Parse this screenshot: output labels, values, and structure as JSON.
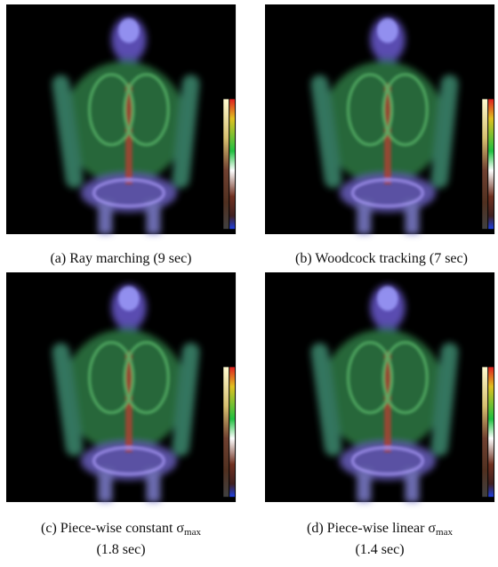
{
  "figures": [
    {
      "caption": "(a) Ray marching (9 sec)"
    },
    {
      "caption": "(b) Woodcock tracking (7 sec)"
    },
    {
      "caption": "(c) Piece-wise constant σ",
      "caption_sub": "max",
      "caption_line2": "(1.8 sec)"
    },
    {
      "caption": "(d) Piece-wise linear σ",
      "caption_sub": "max",
      "caption_line2": "(1.4 sec)"
    }
  ]
}
